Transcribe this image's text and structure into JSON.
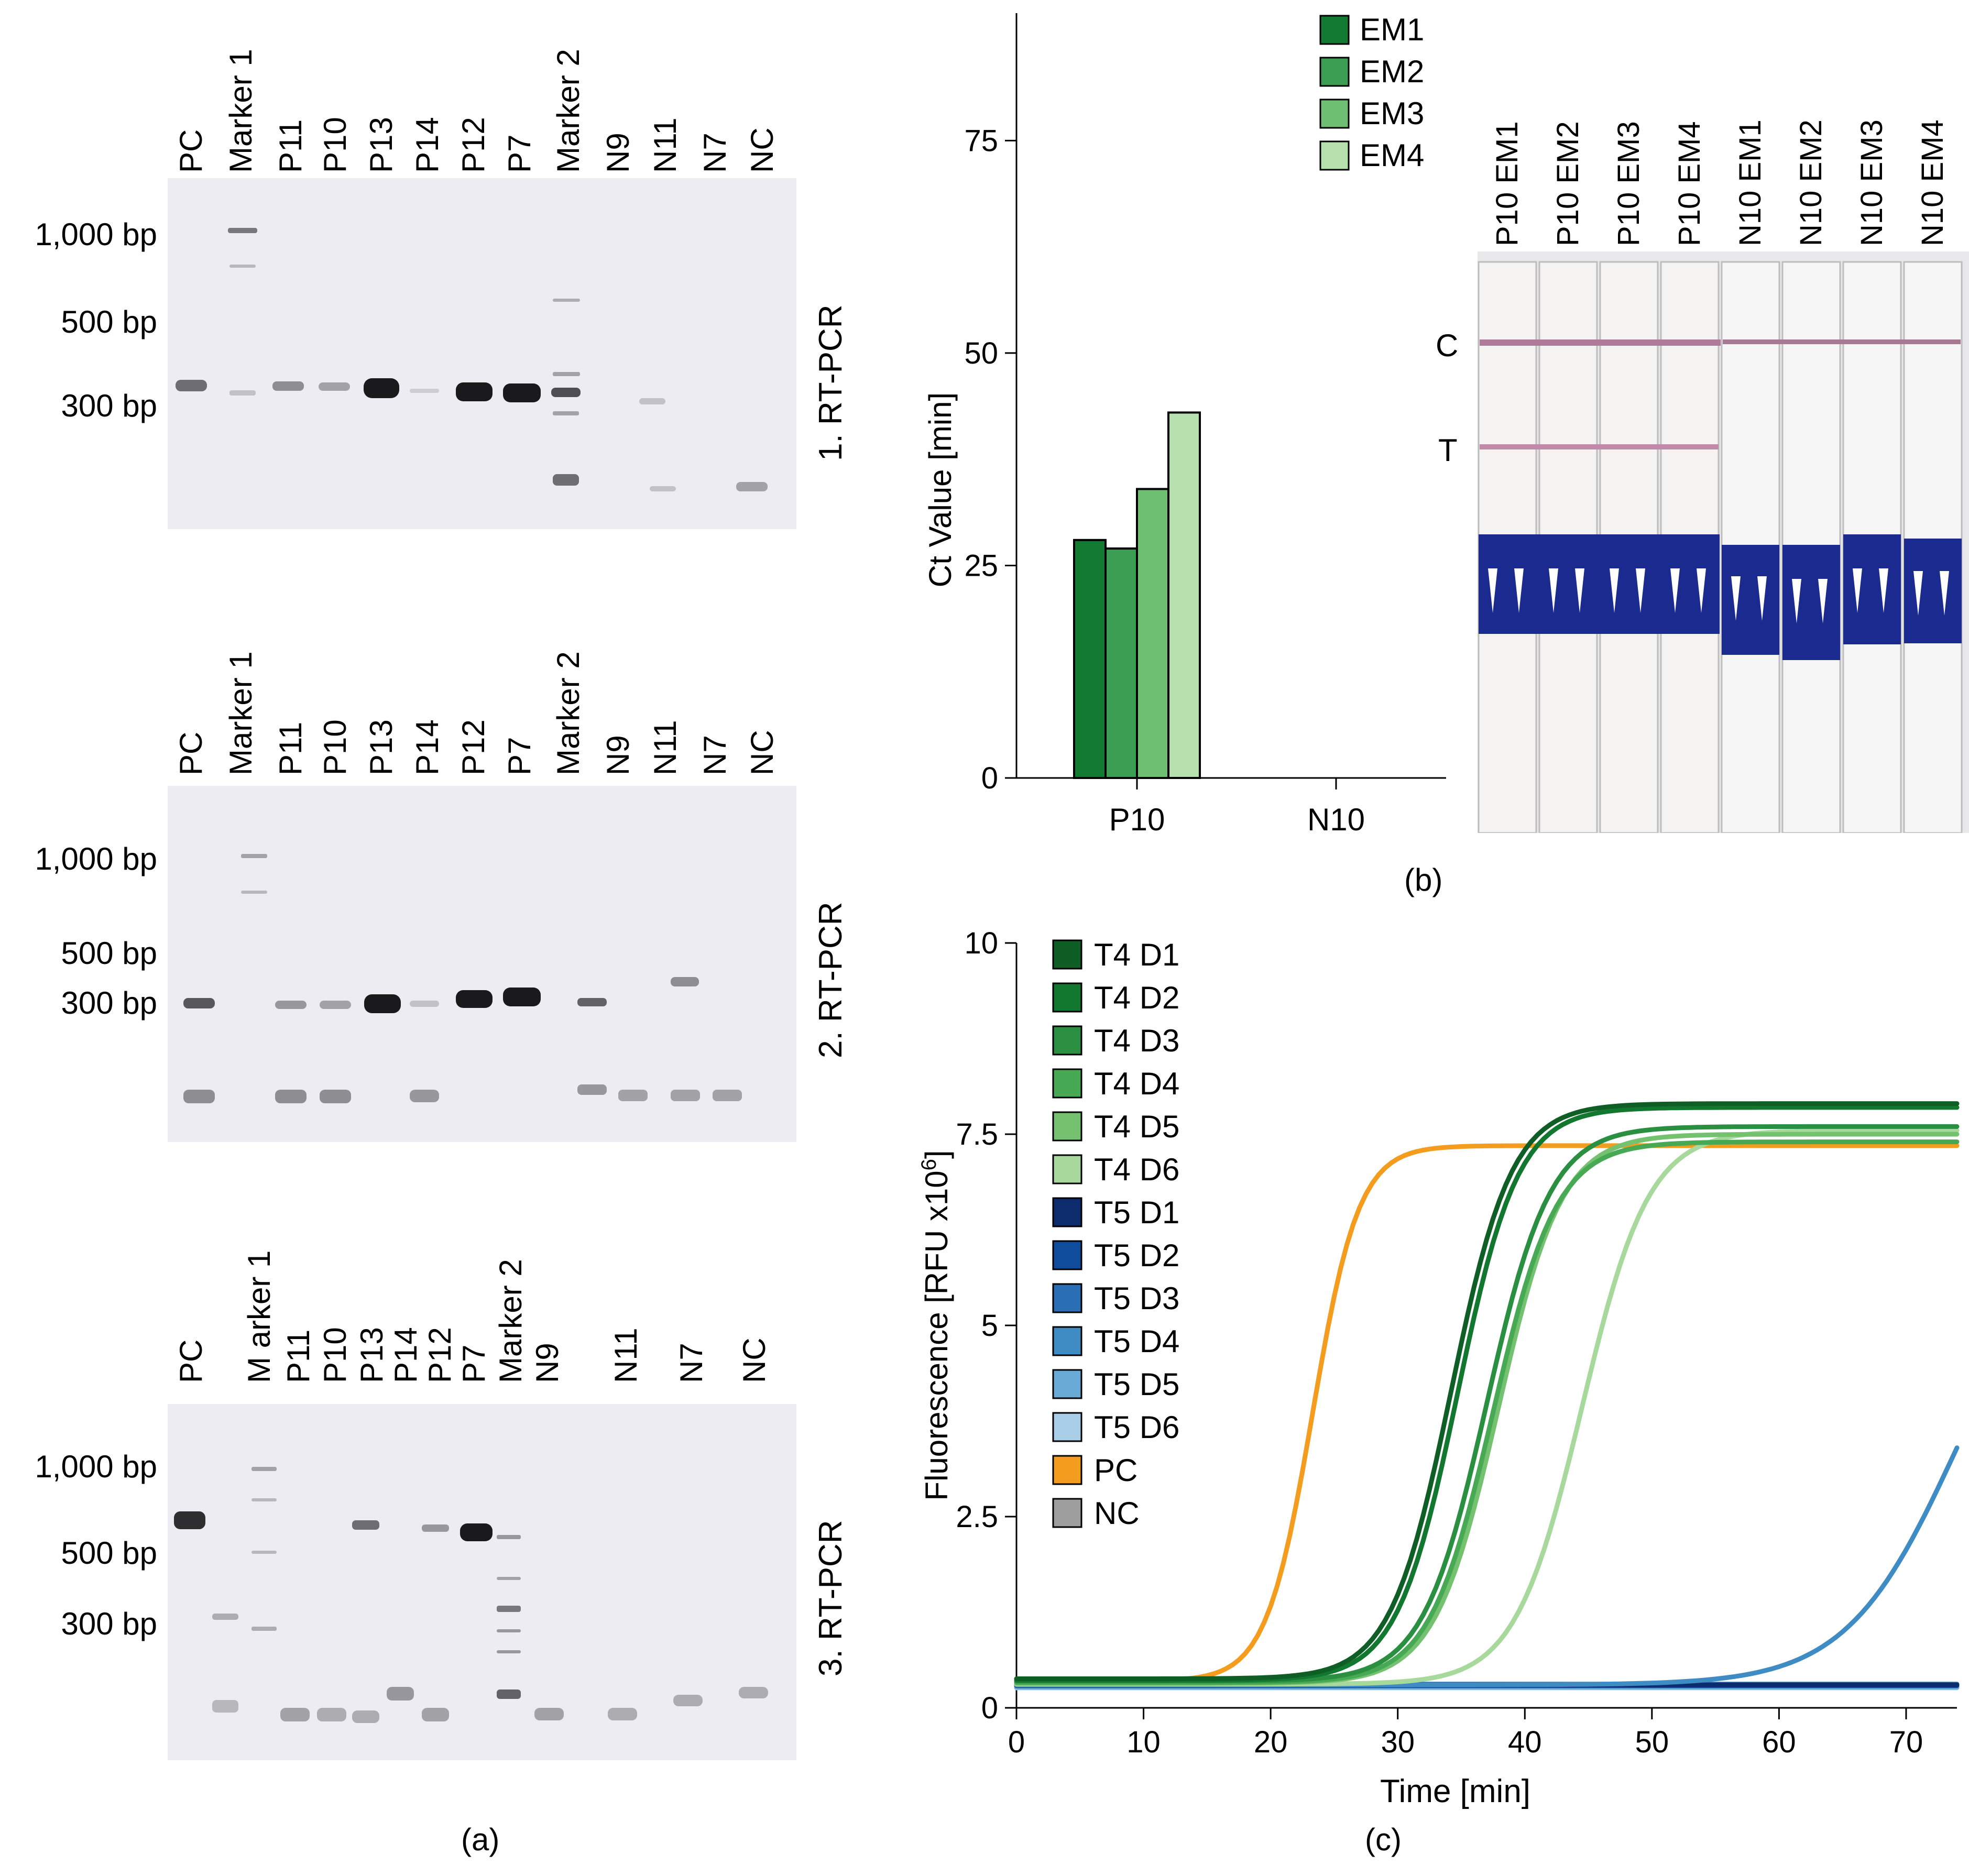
{
  "panel_a": {
    "caption": "(a)",
    "gels": [
      {
        "title": "1. RT-PCR",
        "lanes": [
          "PC",
          "Marker 1",
          "P11",
          "P10",
          "P13",
          "P14",
          "P12",
          "P7",
          "Marker 2",
          "N9",
          "N11",
          "N7",
          "NC"
        ],
        "sizes": [
          "1,000 bp",
          "500 bp",
          "300 bp"
        ]
      },
      {
        "title": "2. RT-PCR",
        "lanes": [
          "PC",
          "Marker 1",
          "P11",
          "P10",
          "P13",
          "P14",
          "P12",
          "P7",
          "Marker 2",
          "N9",
          "N11",
          "N7",
          "NC"
        ],
        "sizes": [
          "1,000 bp",
          "500 bp",
          "300 bp"
        ]
      },
      {
        "title": "3. RT-PCR",
        "lanes": [
          "PC",
          "M arker 1",
          "P11",
          "P10",
          "P13",
          "P14",
          "P12",
          "P7",
          "Marker 2",
          "N9",
          "N11",
          "N7",
          "NC"
        ],
        "sizes": [
          "1,000 bp",
          "500 bp",
          "300 bp"
        ]
      }
    ]
  },
  "panel_b": {
    "caption": "(b)",
    "strip_labels": [
      "P10 EM1",
      "P10 EM2",
      "P10 EM3",
      "P10 EM4",
      "N10 EM1",
      "N10 EM2",
      "N10 EM3",
      "N10 EM4"
    ],
    "line_c": "C",
    "line_t": "T"
  },
  "panel_c": {
    "caption": "(c)"
  },
  "colors": {
    "em": [
      "#137a34",
      "#3c9e52",
      "#6fbf72",
      "#b6e0ae"
    ],
    "t4": [
      "#0f5e25",
      "#13782f",
      "#2a8f40",
      "#48a955",
      "#74c170",
      "#a7d99c"
    ],
    "t5": [
      "#0d2c6e",
      "#0f4c9c",
      "#2a6fb4",
      "#3f8cc4",
      "#6aaad6",
      "#a9cfe8"
    ],
    "pc": "#f39c1e",
    "nc": "#9e9e9e"
  },
  "chart_data": [
    {
      "type": "bar",
      "title": "",
      "xlabel": "",
      "ylabel": "Ct Value [min]",
      "categories": [
        "P10",
        "N10"
      ],
      "series": [
        {
          "name": "EM1",
          "values": [
            28,
            0
          ]
        },
        {
          "name": "EM2",
          "values": [
            27,
            0
          ]
        },
        {
          "name": "EM3",
          "values": [
            34,
            0
          ]
        },
        {
          "name": "EM4",
          "values": [
            43,
            0
          ]
        }
      ],
      "ylim": [
        0,
        90
      ],
      "yticks": [
        0,
        25,
        50,
        75
      ],
      "legend": "top-right"
    },
    {
      "type": "line",
      "title": "",
      "xlabel": "Time [min]",
      "ylabel": "Fluorescence [RFU x10",
      "ylabel_sup": "6",
      "ylabel_end": "]",
      "xlim": [
        0,
        74
      ],
      "ylim": [
        0,
        10
      ],
      "xticks": [
        0,
        10,
        20,
        30,
        40,
        50,
        60,
        70
      ],
      "yticks": [
        0,
        2.5,
        5,
        7.5,
        10
      ],
      "ytick_labels": [
        "0",
        "2.5",
        "5",
        "7.5",
        "10"
      ],
      "legend": "top-left",
      "series": [
        {
          "name": "T4 D1",
          "baseline": 0.38,
          "plateau": 7.9,
          "midpoint": 34.2,
          "rate": 0.42
        },
        {
          "name": "T4 D2",
          "baseline": 0.36,
          "plateau": 7.85,
          "midpoint": 34.7,
          "rate": 0.42
        },
        {
          "name": "T4 D3",
          "baseline": 0.35,
          "plateau": 7.6,
          "midpoint": 37.0,
          "rate": 0.4
        },
        {
          "name": "T4 D4",
          "baseline": 0.33,
          "plateau": 7.4,
          "midpoint": 37.5,
          "rate": 0.4
        },
        {
          "name": "T4 D5",
          "baseline": 0.32,
          "plateau": 7.5,
          "midpoint": 37.9,
          "rate": 0.4
        },
        {
          "name": "T4 D6",
          "baseline": 0.31,
          "plateau": 7.55,
          "midpoint": 44.5,
          "rate": 0.38
        },
        {
          "name": "T5 D1",
          "baseline": 0.3,
          "plateau": 0.3,
          "midpoint": 0,
          "rate": 0
        },
        {
          "name": "T5 D2",
          "baseline": 0.29,
          "plateau": 0.29,
          "midpoint": 0,
          "rate": 0
        },
        {
          "name": "T5 D3",
          "baseline": 0.31,
          "plateau": 0.31,
          "midpoint": 0,
          "rate": 0
        },
        {
          "name": "T5 D4",
          "baseline": 0.3,
          "plateau": 6.5,
          "midpoint": 74.0,
          "rate": 0.23
        },
        {
          "name": "T5 D5",
          "baseline": 0.27,
          "plateau": 0.27,
          "midpoint": 0,
          "rate": 0
        },
        {
          "name": "T5 D6",
          "baseline": 0.26,
          "plateau": 0.26,
          "midpoint": 0,
          "rate": 0
        },
        {
          "name": "PC",
          "baseline": 0.35,
          "plateau": 7.35,
          "midpoint": 23.3,
          "rate": 0.55
        },
        {
          "name": "NC",
          "baseline": 0.3,
          "plateau": 0.3,
          "midpoint": 0,
          "rate": 0
        }
      ]
    }
  ]
}
